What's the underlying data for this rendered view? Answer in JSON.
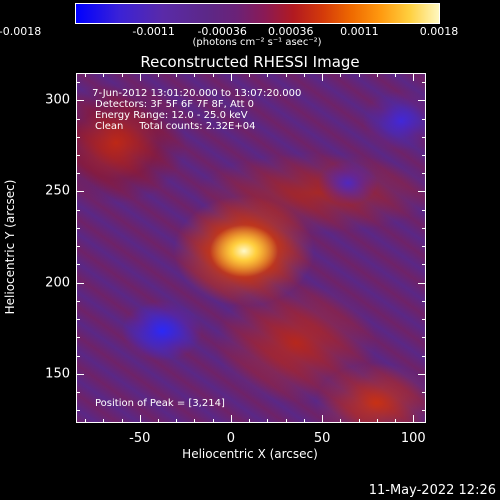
{
  "colorbar": {
    "ticks": [
      "-0.0018",
      "-0.0011",
      "-0.00036",
      "0.00036",
      "0.0011",
      "0.0018"
    ],
    "unit": "(photons cm⁻² s⁻¹ asec⁻²)"
  },
  "info": {
    "time": " 7-Jun-2012 13:01:20.000 to 13:07:20.000",
    "detectors": "Detectors: 3F 5F 6F 7F 8F, Att 0",
    "energy": "Energy Range: 12.0 - 25.0 keV",
    "method": "Clean     Total counts: 2.32E+04",
    "peak": "Position of Peak = [3,214]"
  },
  "footer": {
    "date": "11-May-2022 12:26"
  },
  "chart_data": {
    "type": "heatmap",
    "title": "Reconstructed RHESSI Image",
    "xlabel": "Heliocentric X (arcsec)",
    "ylabel": "Heliocentric Y (arcsec)",
    "xlim": [
      -85,
      107
    ],
    "ylim": [
      123,
      315
    ],
    "x_ticks": [
      "-50",
      "0",
      "50",
      "100"
    ],
    "y_ticks": [
      "150",
      "200",
      "250",
      "300"
    ],
    "colorbar_range": [
      -0.0018,
      0.0018
    ],
    "colormap": "blue-purple-red-yellow-white",
    "peak": {
      "x": 3,
      "y": 214
    }
  }
}
